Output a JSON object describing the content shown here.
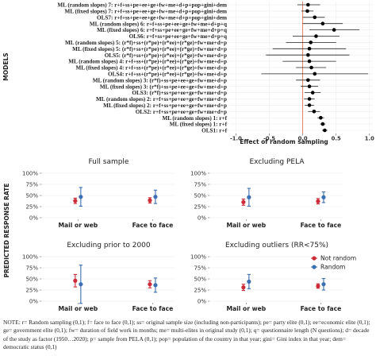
{
  "chart_data": [
    {
      "type": "forest",
      "ylabel": "MODELS",
      "xlabel": "Effect of random sampling",
      "xlim": [
        -1.1,
        1.05
      ],
      "xticks": [
        -1.0,
        -0.5,
        0.0,
        0.5,
        1.0
      ],
      "tick_labels": [
        "-1.0",
        "-0.5",
        "0.0",
        "0.5",
        "1.0"
      ],
      "reference_line": 0,
      "reference_color": "#e8705a",
      "models": [
        {
          "label": "ML (random slopes) 7: r+f+ss+pe+ee+ge+fw+me+d+p+pop+gini+dem",
          "est": 0.08,
          "lo": -0.08,
          "hi": 0.26
        },
        {
          "label": "ML (fixed slopes) 7: r+f+ss+pe+ee+ge+fw+me+d+p+pop+gini+dem",
          "est": 0.07,
          "lo": -0.02,
          "hi": 0.16
        },
        {
          "label": "OLS7: r+f+ss+pe+ee+ge+fw+me+d+p+pop+gini+dem",
          "est": 0.18,
          "lo": 0.0,
          "hi": 0.33
        },
        {
          "label": "ML (random slopes) 6: r+f+ss+pe+ee+ge+fw+me+d+p+q",
          "est": 0.3,
          "lo": 0.0,
          "hi": 0.6
        },
        {
          "label": "ML (fixed slopes) 6: r+f+ss+pe+ee+ge+fw+me+d+p+q",
          "est": 0.47,
          "lo": 0.1,
          "hi": 0.85
        },
        {
          "label": "OLS6: r+f+ss+pe+ee+ge+fw+me+d+p+q",
          "est": 0.2,
          "lo": -0.15,
          "hi": 0.55
        },
        {
          "label": "ML (random slopes) 5: (r*f)+ss+(r*pe)+(r*ee)+(r*ge)+fw+me+d+p",
          "est": 0.12,
          "lo": -0.25,
          "hi": 0.5
        },
        {
          "label": "ML (fixed slopes) 5: (r*f)+ss+(r*pe)+(r*ee)+(r*ge)+fw+me+d+p",
          "est": 0.1,
          "lo": -0.45,
          "hi": 0.65
        },
        {
          "label": "OLS5: (r*f)+ss+(r*pe)+(r*ee)+(r*ge)+fw+me+d+p",
          "est": 0.08,
          "lo": -0.55,
          "hi": 0.7
        },
        {
          "label": "ML (random slopes) 4: r+f+ss+(r*pe)+(r*ee)+(r*ge)+fw+me+d+p",
          "est": 0.1,
          "lo": -0.3,
          "hi": 0.5
        },
        {
          "label": "ML (fixed slopes) 4: r+f+ss+(r*pe)+(r*ee)+(r*ge)+fw+me+d+p",
          "est": 0.13,
          "lo": -0.1,
          "hi": 0.35
        },
        {
          "label": "OLS4: r+f+ss+(r*pe)+(r*ee)+(r*ge)+fw+me+d+p",
          "est": 0.18,
          "lo": -0.62,
          "hi": 0.98
        },
        {
          "label": "ML (random slopes) 3: (r*f)+ss+pe+ee+ge+fw+me+d+p",
          "est": 0.08,
          "lo": -0.1,
          "hi": 0.26
        },
        {
          "label": "ML (fixed slopes) 3: (r*f)+ss+pe+ee+ge+fw+me+d+p",
          "est": 0.1,
          "lo": -0.03,
          "hi": 0.23
        },
        {
          "label": "OLS3: (r*f)+ss+pe+ee+ge+fw+me+d+p",
          "est": 0.15,
          "lo": 0.03,
          "hi": 0.27
        },
        {
          "label": "ML (random slopes) 2: r+f+ss+pe+ee+ge+fw+me+d+p",
          "est": 0.1,
          "lo": 0.02,
          "hi": 0.18
        },
        {
          "label": "ML (fixed slopes) 2: r+f+ss+pe+ee+ge+fw+me+d+p",
          "est": 0.1,
          "lo": 0.03,
          "hi": 0.17
        },
        {
          "label": "OLS2: r+f+ss+pe+ee+ge+fw+me+d+p",
          "est": 0.17,
          "lo": 0.08,
          "hi": 0.26
        },
        {
          "label": "ML (random slopes) 1: r+f",
          "est": 0.27,
          "lo": 0.22,
          "hi": 0.32
        },
        {
          "label": "ML (fixed slopes) 1: r+f",
          "est": 0.3,
          "lo": 0.26,
          "hi": 0.34
        },
        {
          "label": "OLS1: r+f",
          "est": 0.33,
          "lo": 0.29,
          "hi": 0.37
        }
      ]
    },
    {
      "type": "errorbar-panels",
      "ylabel": "PREDICTED RESPONSE RATE",
      "categories": [
        "Mail or web",
        "Face to face"
      ],
      "yticks": [
        0,
        0.25,
        0.5,
        0.75,
        1.0
      ],
      "ytick_labels": [
        "0%",
        "25%",
        "50%",
        "75%",
        "100%"
      ],
      "ylim": [
        0,
        1.0
      ],
      "series": [
        {
          "name": "Not random",
          "color": "#cc2a36"
        },
        {
          "name": "Random",
          "color": "#3b6fb2"
        }
      ],
      "legend_position": "right",
      "panels": [
        {
          "title": "Full sample",
          "values": [
            {
              "est": [
                0.38,
                0.47
              ],
              "lo": [
                0.32,
                0.26
              ],
              "hi": [
                0.44,
                0.68
              ]
            },
            {
              "est": [
                0.39,
                0.47
              ],
              "lo": [
                0.33,
                0.32
              ],
              "hi": [
                0.45,
                0.62
              ]
            }
          ]
        },
        {
          "title": "Excluding PELA",
          "values": [
            {
              "est": [
                0.35,
                0.46
              ],
              "lo": [
                0.28,
                0.26
              ],
              "hi": [
                0.42,
                0.66
              ]
            },
            {
              "est": [
                0.37,
                0.46
              ],
              "lo": [
                0.31,
                0.34
              ],
              "hi": [
                0.43,
                0.58
              ]
            }
          ]
        },
        {
          "title": "Excluding prior to 2000",
          "values": [
            {
              "est": [
                0.46,
                0.38
              ],
              "lo": [
                0.32,
                -0.05
              ],
              "hi": [
                0.6,
                0.81
              ]
            },
            {
              "est": [
                0.38,
                0.36
              ],
              "lo": [
                0.3,
                0.2
              ],
              "hi": [
                0.46,
                0.52
              ]
            }
          ]
        },
        {
          "title": "Excluding outliers (RR<75%)",
          "values": [
            {
              "est": [
                0.31,
                0.44
              ],
              "lo": [
                0.24,
                0.28
              ],
              "hi": [
                0.38,
                0.6
              ]
            },
            {
              "est": [
                0.34,
                0.38
              ],
              "lo": [
                0.29,
                0.25
              ],
              "hi": [
                0.39,
                0.51
              ]
            }
          ]
        }
      ]
    }
  ],
  "note": {
    "text": "NOTE: r= Random sampling (0,1); f= face to face (0,1); ss= original sample size (including non-participants); pe= party elite (0,1); ee=economic elite (0,1); ge= government elite (0,1); fw= duration of field work in months; me= multi-elites in original study (0,1); q= questionnaire length (N questions); d= decade of the study as factor (1950…2020); p= sample from PELA (0,1); pop= population of the country in that year; gini= Gini index in that year; dem= democratic status (0,1)"
  }
}
